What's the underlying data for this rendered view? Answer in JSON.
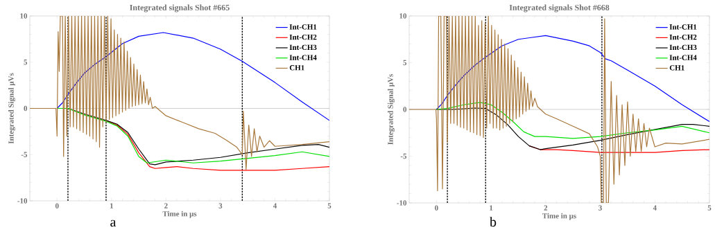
{
  "chart_data": [
    {
      "type": "line",
      "title": "Integrated signals Shot #665",
      "xlabel": "Time in μs",
      "ylabel": "Integrated Signal μVs",
      "xlim": [
        -0.5,
        5
      ],
      "ylim": [
        -10,
        10
      ],
      "xticks": [
        0,
        1,
        2,
        3,
        4,
        5
      ],
      "yticks": [
        -10,
        -5,
        0,
        5,
        10
      ],
      "legend": "top right",
      "marker": "none",
      "annotations": [
        "a"
      ],
      "ref_lines": [
        {
          "axis": "y",
          "value": 0,
          "color": "#b4b4b4",
          "line_style": "solid"
        },
        {
          "axis": "x",
          "value": 0.2,
          "color": "#000000",
          "line_style": "dashed"
        },
        {
          "axis": "x",
          "value": 0.9,
          "color": "#000000",
          "line_style": "dashed"
        },
        {
          "axis": "x",
          "value": 3.4,
          "color": "#000000",
          "line_style": "dashed"
        }
      ],
      "series": [
        {
          "name": "Int-CH1",
          "color": "#0000ff",
          "x": [
            0,
            0.1,
            0.2,
            0.35,
            0.5,
            0.7,
            0.9,
            1.2,
            1.5,
            1.95,
            2.5,
            3.0,
            3.4,
            4.0,
            4.5,
            5.0
          ],
          "values": [
            0,
            0.6,
            1.5,
            2.7,
            3.8,
            4.8,
            5.6,
            7.0,
            7.8,
            8.2,
            7.6,
            6.4,
            5.1,
            2.8,
            0.7,
            -1.3
          ]
        },
        {
          "name": "Int-CH2",
          "color": "#ff0000",
          "x": [
            0.9,
            1.1,
            1.3,
            1.5,
            1.7,
            1.8,
            2.0,
            2.2,
            2.5,
            3.0,
            3.5,
            4.0,
            4.5,
            5.0
          ],
          "values": [
            -1.3,
            -1.8,
            -2.8,
            -4.8,
            -6.3,
            -6.5,
            -6.4,
            -6.3,
            -6.5,
            -6.7,
            -6.7,
            -6.7,
            -6.5,
            -6.3
          ]
        },
        {
          "name": "Int-CH3",
          "color": "#000000",
          "x": [
            0,
            0.2,
            0.5,
            0.9,
            1.1,
            1.3,
            1.5,
            1.7,
            1.8,
            2.0,
            2.5,
            3.0,
            3.5,
            4.0,
            4.5,
            4.8,
            5.0
          ],
          "values": [
            0,
            0,
            -0.6,
            -1.3,
            -1.7,
            -2.6,
            -4.4,
            -6.0,
            -6.1,
            -5.8,
            -5.6,
            -5.3,
            -4.8,
            -4.4,
            -4.0,
            -3.9,
            -4.2
          ]
        },
        {
          "name": "Int-CH4",
          "color": "#00e000",
          "x": [
            0,
            0.2,
            0.5,
            0.9,
            1.1,
            1.3,
            1.5,
            1.65,
            2.0,
            2.5,
            3.0,
            3.5,
            4.0,
            4.5,
            5.0
          ],
          "values": [
            0,
            0,
            -0.7,
            -1.4,
            -1.9,
            -3.0,
            -5.2,
            -5.9,
            -5.6,
            -5.9,
            -5.7,
            -5.4,
            -5.1,
            -4.7,
            -5.2
          ]
        },
        {
          "name": "CH1",
          "color": "#a8783c",
          "x": [
            -0.5,
            -0.2,
            -0.02,
            0,
            0.02,
            0.04,
            0.06,
            0.1,
            0.12,
            0.15,
            0.18,
            0.21,
            0.24,
            0.27,
            0.3,
            0.33,
            0.36,
            0.39,
            0.42,
            0.45,
            0.48,
            0.51,
            0.54,
            0.57,
            0.6,
            0.63,
            0.66,
            0.69,
            0.72,
            0.75,
            0.78,
            0.81,
            0.84,
            0.87,
            0.9,
            0.93,
            0.96,
            0.99,
            1.02,
            1.05,
            1.08,
            1.11,
            1.14,
            1.17,
            1.2,
            1.23,
            1.26,
            1.29,
            1.32,
            1.35,
            1.38,
            1.41,
            1.44,
            1.47,
            1.5,
            1.53,
            1.56,
            1.59,
            1.62,
            1.65,
            1.68,
            1.71,
            1.75,
            1.8,
            2.0,
            2.3,
            2.6,
            2.9,
            3.1,
            3.3,
            3.4,
            3.42,
            3.47,
            3.52,
            3.57,
            3.62,
            3.67,
            3.72,
            3.8,
            3.9,
            4.0,
            4.5,
            5.0
          ],
          "values": [
            0,
            0,
            0,
            -3,
            8.3,
            4,
            10,
            10,
            -5.2,
            10,
            -3,
            10,
            -2,
            10,
            -2,
            10,
            -2.2,
            10,
            -2.4,
            10,
            -2.6,
            10,
            -2.8,
            10,
            -3,
            10,
            -3.3,
            10,
            -3.6,
            10,
            -4.2,
            10,
            -2,
            10,
            -1.5,
            10,
            -1.2,
            9.7,
            -1,
            8.5,
            -0.8,
            8,
            -0.6,
            7.6,
            -0.4,
            7.2,
            -0.2,
            6.2,
            0,
            5.5,
            0.2,
            4.8,
            0.3,
            4.2,
            0.4,
            3.6,
            0.5,
            2.9,
            0.6,
            2.1,
            0.4,
            1.2,
            0,
            0.2,
            -0.8,
            -1.5,
            -2.2,
            -2.7,
            -3.4,
            -4.2,
            -5,
            -0.3,
            -6.6,
            -1.8,
            -5.2,
            -2.2,
            -4.7,
            -3,
            -4.2,
            -3.5,
            -4.1,
            -3.9,
            -3.6
          ]
        }
      ]
    },
    {
      "type": "line",
      "title": "Integrated signals Shot #668",
      "xlabel": "Time in μs",
      "ylabel": "Integrated Signal μVs",
      "xlim": [
        -0.5,
        5
      ],
      "ylim": [
        -10,
        10
      ],
      "xticks": [
        0,
        1,
        2,
        3,
        4,
        5
      ],
      "yticks": [
        -10,
        -5,
        0,
        5,
        10
      ],
      "legend": "top right",
      "marker": "none",
      "annotations": [
        "b"
      ],
      "ref_lines": [
        {
          "axis": "y",
          "value": 0,
          "color": "#b4b4b4",
          "line_style": "solid"
        },
        {
          "axis": "x",
          "value": 0.2,
          "color": "#000000",
          "line_style": "dashed"
        },
        {
          "axis": "x",
          "value": 0.9,
          "color": "#000000",
          "line_style": "dashed"
        },
        {
          "axis": "x",
          "value": 3.03,
          "color": "#000000",
          "line_style": "dashed"
        }
      ],
      "series": [
        {
          "name": "Int-CH1",
          "color": "#0000ff",
          "x": [
            0,
            0.1,
            0.2,
            0.35,
            0.5,
            0.7,
            0.9,
            1.2,
            1.5,
            2.0,
            2.5,
            2.8,
            3.0,
            3.1,
            3.2,
            3.5,
            4.0,
            4.5,
            5.0
          ],
          "values": [
            0,
            0.6,
            1.5,
            2.6,
            3.6,
            4.7,
            5.6,
            6.8,
            7.5,
            7.9,
            7.3,
            6.8,
            6.1,
            5.4,
            5.2,
            4.2,
            2.5,
            0.5,
            -1.3
          ]
        },
        {
          "name": "Int-CH2",
          "color": "#ff0000",
          "x": [
            1.7,
            1.9,
            2.2,
            2.5,
            3.0,
            3.5,
            4.0,
            4.5,
            5.0
          ],
          "values": [
            -3.9,
            -4.3,
            -4.3,
            -4.4,
            -4.6,
            -4.6,
            -4.6,
            -4.4,
            -4.3
          ]
        },
        {
          "name": "Int-CH3",
          "color": "#000000",
          "x": [
            0,
            0.3,
            0.7,
            0.9,
            1.1,
            1.3,
            1.5,
            1.7,
            1.9,
            2.0,
            2.5,
            3.0,
            3.5,
            4.5,
            4.7,
            5.0
          ],
          "values": [
            0,
            0,
            0.15,
            0.1,
            -0.6,
            -1.6,
            -2.9,
            -3.9,
            -4.3,
            -4.2,
            -3.8,
            -3.3,
            -2.7,
            -1.6,
            -1.6,
            -1.8
          ]
        },
        {
          "name": "Int-CH4",
          "color": "#00e000",
          "x": [
            0,
            0.2,
            0.5,
            0.8,
            1.0,
            1.2,
            1.4,
            1.6,
            1.8,
            2.0,
            2.5,
            3.0,
            3.5,
            4.0,
            4.5,
            5.0
          ],
          "values": [
            0,
            0.1,
            0.5,
            0.75,
            0.5,
            -0.3,
            -1.3,
            -2.4,
            -2.9,
            -2.9,
            -3.1,
            -2.9,
            -2.5,
            -2.2,
            -1.8,
            -2.5
          ]
        },
        {
          "name": "CH1",
          "color": "#a8783c",
          "x": [
            -0.5,
            -0.2,
            -0.01,
            0,
            0.02,
            0.04,
            0.08,
            0.11,
            0.14,
            0.18,
            0.2,
            0.23,
            0.26,
            0.29,
            0.32,
            0.35,
            0.38,
            0.41,
            0.44,
            0.47,
            0.5,
            0.53,
            0.56,
            0.59,
            0.62,
            0.65,
            0.68,
            0.71,
            0.74,
            0.77,
            0.8,
            0.83,
            0.86,
            0.89,
            0.92,
            0.95,
            0.98,
            1.01,
            1.04,
            1.07,
            1.1,
            1.13,
            1.16,
            1.19,
            1.22,
            1.25,
            1.28,
            1.31,
            1.34,
            1.37,
            1.4,
            1.43,
            1.46,
            1.49,
            1.52,
            1.55,
            1.58,
            1.61,
            1.64,
            1.67,
            1.7,
            1.73,
            1.76,
            1.8,
            1.85,
            2.0,
            2.2,
            2.5,
            2.8,
            2.95,
            3.0,
            3.02,
            3.06,
            3.08,
            3.11,
            3.15,
            3.2,
            3.25,
            3.3,
            3.35,
            3.4,
            3.45,
            3.5,
            3.55,
            3.6,
            3.65,
            3.7,
            3.75,
            3.8,
            3.85,
            3.9,
            4.0,
            4.2,
            4.5,
            5.0
          ],
          "values": [
            0,
            0,
            0,
            -1,
            -8.7,
            10,
            10,
            -8.5,
            10,
            10,
            -3.5,
            10,
            -1.5,
            10,
            -1.5,
            10,
            -1.7,
            10,
            -1.9,
            10,
            -2,
            10,
            -2.2,
            10,
            -2.4,
            10,
            -2.5,
            10,
            -2.7,
            9,
            -2.8,
            9.5,
            -3,
            9.2,
            -2,
            10,
            -1.5,
            9,
            -2,
            8.5,
            -2,
            8,
            -2.2,
            7.5,
            -2,
            7,
            -1.8,
            6.5,
            -1.5,
            5.8,
            -1.3,
            5.2,
            -1,
            4.5,
            -0.8,
            4,
            -0.5,
            3.5,
            -0.2,
            2.8,
            0,
            2,
            0.3,
            1.2,
            0.3,
            -0.5,
            -1,
            -1.8,
            -2.6,
            -4,
            -5,
            -10,
            -10,
            9.7,
            -10,
            -10,
            3,
            -8,
            1.5,
            -7,
            0.5,
            -6,
            0.8,
            -5,
            -0.5,
            -4.5,
            -1,
            -4.5,
            -1.5,
            -4,
            -2,
            -4,
            -3.6,
            -3.7,
            -3.2
          ]
        }
      ]
    }
  ]
}
